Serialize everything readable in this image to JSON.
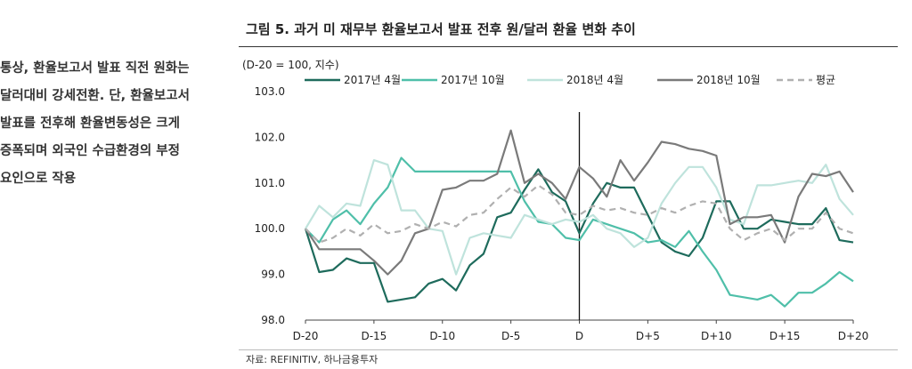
{
  "side_text": {
    "lines": [
      "통상, 환율보고서 발표 직전 원화는",
      "달러대비 강세전환. 단, 환율보고서",
      "발표를 전후해 환율변동성은 크게",
      "증폭되며 외국인 수급환경의 부정",
      "요인으로 작용"
    ]
  },
  "figure_title": "그림 5. 과거 미 재무부 환율보고서 발표 전후 원/달러 환율 변화 추이",
  "source": "자료: REFINITIV, 하나금융투자",
  "chart_data": {
    "type": "line",
    "unit_label": "(D-20 = 100, 지수)",
    "x": [
      -20,
      -19,
      -18,
      -17,
      -16,
      -15,
      -14,
      -13,
      -12,
      -11,
      -10,
      -9,
      -8,
      -7,
      -6,
      -5,
      -4,
      -3,
      -2,
      -1,
      0,
      1,
      2,
      3,
      4,
      5,
      6,
      7,
      8,
      9,
      10,
      11,
      12,
      13,
      14,
      15,
      16,
      17,
      18,
      19,
      20
    ],
    "x_tick_labels": [
      "D-20",
      "D-15",
      "D-10",
      "D-5",
      "D",
      "D+5",
      "D+10",
      "D+15",
      "D+20"
    ],
    "x_tick_values": [
      -20,
      -15,
      -10,
      -5,
      0,
      5,
      10,
      15,
      20
    ],
    "ylim": [
      98.0,
      103.0
    ],
    "y_tick_labels": [
      "98.0",
      "99.0",
      "100.0",
      "101.0",
      "102.0",
      "103.0"
    ],
    "y_tick_values": [
      98,
      99,
      100,
      101,
      102,
      103
    ],
    "event_line_x": 0,
    "series": [
      {
        "name": "2017년 4월",
        "color": "#1e6b5c",
        "dash": "",
        "values": [
          100.0,
          99.05,
          99.1,
          99.35,
          99.25,
          99.25,
          98.4,
          98.45,
          98.5,
          98.8,
          98.9,
          98.65,
          99.2,
          99.45,
          100.25,
          100.35,
          100.85,
          101.3,
          100.8,
          100.6,
          99.9,
          100.55,
          101.0,
          100.9,
          100.9,
          100.3,
          99.7,
          99.5,
          99.4,
          99.8,
          100.6,
          100.6,
          100.0,
          100.0,
          100.2,
          100.15,
          100.1,
          100.1,
          100.45,
          99.75,
          99.7
        ]
      },
      {
        "name": "2017년 10월",
        "color": "#4fbfa9",
        "dash": "",
        "values": [
          100.0,
          99.7,
          100.2,
          100.4,
          100.1,
          100.55,
          100.9,
          101.55,
          101.25,
          101.25,
          101.25,
          101.25,
          101.25,
          101.25,
          101.25,
          101.25,
          100.6,
          100.15,
          100.1,
          99.8,
          99.75,
          100.2,
          100.1,
          100.0,
          99.9,
          99.7,
          99.75,
          99.6,
          99.95,
          99.5,
          99.1,
          98.55,
          98.5,
          98.45,
          98.55,
          98.3,
          98.6,
          98.6,
          98.8,
          99.05,
          98.85
        ]
      },
      {
        "name": "2018년 4월",
        "color": "#bfe3dc",
        "dash": "",
        "values": [
          100.0,
          100.5,
          100.25,
          100.55,
          100.5,
          101.5,
          101.4,
          100.4,
          100.4,
          100.0,
          99.95,
          99.0,
          99.8,
          99.9,
          99.85,
          99.8,
          100.3,
          100.2,
          100.1,
          100.2,
          100.15,
          100.3,
          100.0,
          99.9,
          99.6,
          99.8,
          100.55,
          101.0,
          101.35,
          101.35,
          100.9,
          100.2,
          100.1,
          100.95,
          100.95,
          101.0,
          101.05,
          101.0,
          101.4,
          100.65,
          100.3
        ]
      },
      {
        "name": "2018년 10월",
        "color": "#7a7a7a",
        "dash": "",
        "values": [
          100.0,
          99.55,
          99.55,
          99.55,
          99.55,
          99.3,
          99.0,
          99.3,
          99.9,
          100.0,
          100.85,
          100.9,
          101.05,
          101.05,
          101.2,
          102.15,
          101.0,
          101.2,
          101.0,
          100.65,
          101.35,
          101.1,
          100.7,
          101.5,
          101.05,
          101.45,
          101.9,
          101.85,
          101.75,
          101.7,
          101.6,
          100.1,
          100.25,
          100.25,
          100.3,
          99.7,
          100.7,
          101.2,
          101.15,
          101.25,
          100.8
        ]
      },
      {
        "name": "평균",
        "color": "#b0b0b0",
        "dash": "7,5",
        "values": [
          100.0,
          99.7,
          99.8,
          100.0,
          99.85,
          100.1,
          99.9,
          99.95,
          100.1,
          100.0,
          100.15,
          100.05,
          100.3,
          100.35,
          100.65,
          100.9,
          100.7,
          100.95,
          100.75,
          100.35,
          100.3,
          100.5,
          100.4,
          100.45,
          100.35,
          100.3,
          100.45,
          100.35,
          100.5,
          100.6,
          100.55,
          100.0,
          99.75,
          99.9,
          100.0,
          99.75,
          100.0,
          100.0,
          100.35,
          100.0,
          99.9
        ]
      }
    ]
  }
}
